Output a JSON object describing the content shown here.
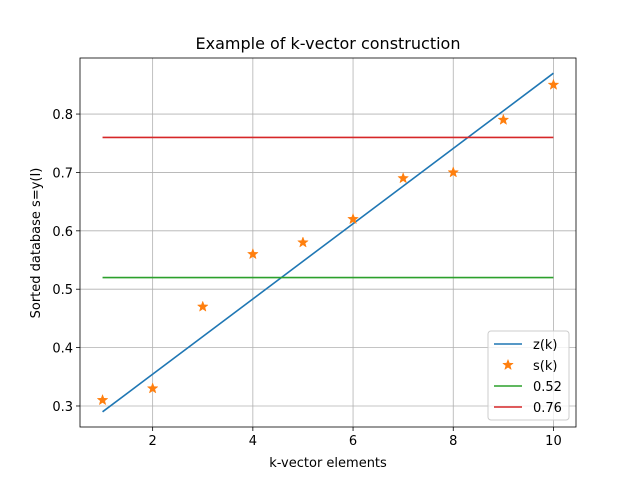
{
  "chart_data": {
    "type": "line",
    "title": "Example of k-vector construction",
    "xlabel": "k-vector elements",
    "ylabel": "Sorted database s=y(I)",
    "xlim": [
      0.55,
      10.45
    ],
    "ylim": [
      0.264,
      0.896
    ],
    "xticks": [
      2,
      4,
      6,
      8,
      10
    ],
    "xtick_labels": [
      "2",
      "4",
      "6",
      "8",
      "10"
    ],
    "yticks": [
      0.3,
      0.4,
      0.5,
      0.6,
      0.7,
      0.8
    ],
    "ytick_labels": [
      "0.3",
      "0.4",
      "0.5",
      "0.6",
      "0.7",
      "0.8"
    ],
    "grid": true,
    "legend_position": "lower-right",
    "series": [
      {
        "name": "z(k)",
        "kind": "line",
        "color": "#1f77b4",
        "x": [
          1,
          10
        ],
        "y": [
          0.29,
          0.87
        ]
      },
      {
        "name": "s(k)",
        "kind": "scatter",
        "marker": "star",
        "color": "#ff7f0e",
        "x": [
          1,
          2,
          3,
          4,
          5,
          6,
          7,
          8,
          9,
          10
        ],
        "y": [
          0.31,
          0.33,
          0.47,
          0.56,
          0.58,
          0.62,
          0.69,
          0.7,
          0.79,
          0.85
        ]
      },
      {
        "name": "0.52",
        "kind": "line",
        "color": "#2ca02c",
        "x": [
          1,
          10
        ],
        "y": [
          0.52,
          0.52
        ]
      },
      {
        "name": "0.76",
        "kind": "line",
        "color": "#d62728",
        "x": [
          1,
          10
        ],
        "y": [
          0.76,
          0.76
        ]
      }
    ]
  }
}
